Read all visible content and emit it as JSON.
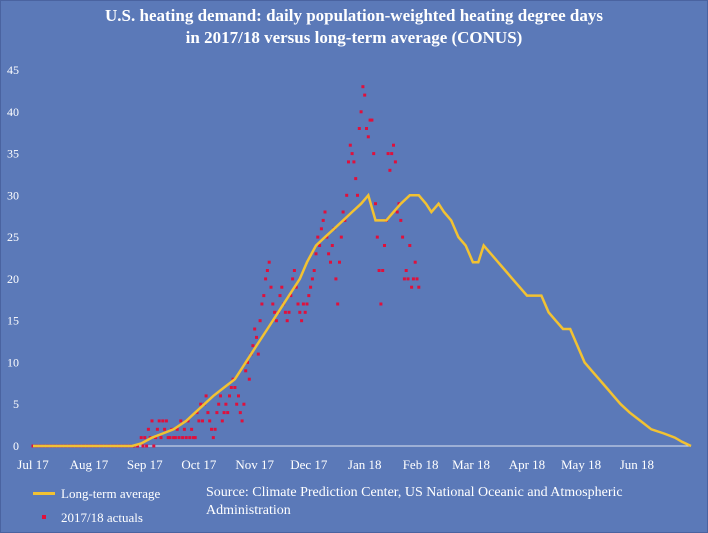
{
  "chart_data": {
    "type": "line",
    "title_lines": [
      "U.S. heating demand: daily population-weighted heating degree days",
      "in 2017/18 versus long-term average (CONUS)"
    ],
    "ylim": [
      0,
      45
    ],
    "yticks": [
      0,
      5,
      10,
      15,
      20,
      25,
      30,
      35,
      40,
      45
    ],
    "x_unit": "days since Jul 1, 2017",
    "xlim": [
      0,
      365
    ],
    "xticks": [
      {
        "label": "Jul 17",
        "day": 0
      },
      {
        "label": "Aug 17",
        "day": 31
      },
      {
        "label": "Sep 17",
        "day": 62
      },
      {
        "label": "Oct 17",
        "day": 92
      },
      {
        "label": "Nov 17",
        "day": 123
      },
      {
        "label": "Dec 17",
        "day": 153
      },
      {
        "label": "Jan 18",
        "day": 184
      },
      {
        "label": "Feb 18",
        "day": 215
      },
      {
        "label": "Mar 18",
        "day": 243
      },
      {
        "label": "Apr 18",
        "day": 274
      },
      {
        "label": "May 18",
        "day": 304
      },
      {
        "label": "Jun 18",
        "day": 335
      }
    ],
    "grid": false,
    "legend_position": "bottom-left",
    "series": [
      {
        "name": "Long-term average",
        "style": "line",
        "color": "#f2c232",
        "points": [
          [
            0,
            0
          ],
          [
            55,
            0
          ],
          [
            60,
            0.3
          ],
          [
            66,
            1
          ],
          [
            72,
            1.5
          ],
          [
            78,
            2
          ],
          [
            85,
            3
          ],
          [
            90,
            4
          ],
          [
            95,
            5
          ],
          [
            100,
            6
          ],
          [
            106,
            7
          ],
          [
            112,
            8
          ],
          [
            118,
            10
          ],
          [
            124,
            12
          ],
          [
            130,
            14
          ],
          [
            136,
            16
          ],
          [
            142,
            18
          ],
          [
            148,
            20
          ],
          [
            152,
            22
          ],
          [
            157,
            24
          ],
          [
            162,
            25
          ],
          [
            167,
            26
          ],
          [
            172,
            27
          ],
          [
            177,
            28
          ],
          [
            182,
            29
          ],
          [
            186,
            30
          ],
          [
            190,
            27
          ],
          [
            196,
            27
          ],
          [
            200,
            28
          ],
          [
            204,
            29
          ],
          [
            209,
            30
          ],
          [
            214,
            30
          ],
          [
            218,
            29
          ],
          [
            221,
            28
          ],
          [
            225,
            29
          ],
          [
            228,
            28
          ],
          [
            232,
            27
          ],
          [
            236,
            25
          ],
          [
            240,
            24
          ],
          [
            244,
            22
          ],
          [
            247,
            22
          ],
          [
            250,
            24
          ],
          [
            254,
            23
          ],
          [
            258,
            22
          ],
          [
            262,
            21
          ],
          [
            266,
            20
          ],
          [
            270,
            19
          ],
          [
            274,
            18
          ],
          [
            282,
            18
          ],
          [
            286,
            16
          ],
          [
            290,
            15
          ],
          [
            294,
            14
          ],
          [
            298,
            14
          ],
          [
            302,
            12
          ],
          [
            306,
            10
          ],
          [
            310,
            9
          ],
          [
            314,
            8
          ],
          [
            318,
            7
          ],
          [
            322,
            6
          ],
          [
            326,
            5
          ],
          [
            331,
            4
          ],
          [
            337,
            3
          ],
          [
            343,
            2
          ],
          [
            350,
            1.5
          ],
          [
            356,
            1
          ],
          [
            360,
            0.5
          ],
          [
            365,
            0
          ]
        ]
      },
      {
        "name": "2017/18 actuals",
        "style": "scatter",
        "color": "#e0103c",
        "points": [
          [
            0,
            0
          ],
          [
            2,
            0
          ],
          [
            4,
            0
          ],
          [
            6,
            0
          ],
          [
            8,
            0
          ],
          [
            10,
            0
          ],
          [
            12,
            0
          ],
          [
            14,
            0
          ],
          [
            16,
            0
          ],
          [
            18,
            0
          ],
          [
            20,
            0
          ],
          [
            22,
            0
          ],
          [
            24,
            0
          ],
          [
            26,
            0
          ],
          [
            28,
            0
          ],
          [
            30,
            0
          ],
          [
            32,
            0
          ],
          [
            34,
            0
          ],
          [
            36,
            0
          ],
          [
            38,
            0
          ],
          [
            40,
            0
          ],
          [
            42,
            0
          ],
          [
            44,
            0
          ],
          [
            46,
            0
          ],
          [
            48,
            0
          ],
          [
            50,
            0
          ],
          [
            52,
            0
          ],
          [
            54,
            0
          ],
          [
            56,
            0
          ],
          [
            58,
            0
          ],
          [
            60,
            1
          ],
          [
            61,
            0
          ],
          [
            62,
            1
          ],
          [
            63,
            0
          ],
          [
            64,
            2
          ],
          [
            65,
            1
          ],
          [
            66,
            3
          ],
          [
            67,
            0
          ],
          [
            68,
            1
          ],
          [
            69,
            2
          ],
          [
            70,
            3
          ],
          [
            71,
            1
          ],
          [
            72,
            3
          ],
          [
            73,
            2
          ],
          [
            74,
            3
          ],
          [
            75,
            1
          ],
          [
            76,
            1
          ],
          [
            77,
            2
          ],
          [
            78,
            1
          ],
          [
            79,
            1
          ],
          [
            80,
            2
          ],
          [
            81,
            1
          ],
          [
            82,
            3
          ],
          [
            83,
            1
          ],
          [
            84,
            2
          ],
          [
            85,
            1
          ],
          [
            86,
            3
          ],
          [
            87,
            1
          ],
          [
            88,
            2
          ],
          [
            89,
            1
          ],
          [
            90,
            1
          ],
          [
            91,
            4
          ],
          [
            92,
            3
          ],
          [
            93,
            5
          ],
          [
            94,
            3
          ],
          [
            95,
            5
          ],
          [
            96,
            6
          ],
          [
            97,
            4
          ],
          [
            98,
            3
          ],
          [
            99,
            2
          ],
          [
            100,
            1
          ],
          [
            101,
            2
          ],
          [
            102,
            4
          ],
          [
            103,
            5
          ],
          [
            104,
            6
          ],
          [
            105,
            3
          ],
          [
            106,
            4
          ],
          [
            107,
            5
          ],
          [
            108,
            4
          ],
          [
            109,
            6
          ],
          [
            110,
            7
          ],
          [
            111,
            8
          ],
          [
            112,
            7
          ],
          [
            113,
            5
          ],
          [
            114,
            6
          ],
          [
            115,
            4
          ],
          [
            116,
            3
          ],
          [
            117,
            5
          ],
          [
            118,
            9
          ],
          [
            119,
            10
          ],
          [
            120,
            8
          ],
          [
            121,
            11
          ],
          [
            122,
            12
          ],
          [
            123,
            14
          ],
          [
            124,
            13
          ],
          [
            125,
            11
          ],
          [
            126,
            15
          ],
          [
            127,
            17
          ],
          [
            128,
            18
          ],
          [
            129,
            20
          ],
          [
            130,
            21
          ],
          [
            131,
            22
          ],
          [
            132,
            19
          ],
          [
            133,
            17
          ],
          [
            134,
            16
          ],
          [
            135,
            15
          ],
          [
            136,
            16
          ],
          [
            137,
            18
          ],
          [
            138,
            19
          ],
          [
            139,
            17
          ],
          [
            140,
            16
          ],
          [
            141,
            15
          ],
          [
            142,
            16
          ],
          [
            143,
            18
          ],
          [
            144,
            20
          ],
          [
            145,
            21
          ],
          [
            146,
            19
          ],
          [
            147,
            17
          ],
          [
            148,
            16
          ],
          [
            149,
            15
          ],
          [
            150,
            17
          ],
          [
            151,
            16
          ],
          [
            152,
            17
          ],
          [
            153,
            18
          ],
          [
            154,
            19
          ],
          [
            155,
            20
          ],
          [
            156,
            21
          ],
          [
            157,
            23
          ],
          [
            158,
            25
          ],
          [
            159,
            24
          ],
          [
            160,
            26
          ],
          [
            161,
            27
          ],
          [
            162,
            28
          ],
          [
            163,
            25
          ],
          [
            164,
            23
          ],
          [
            165,
            22
          ],
          [
            166,
            24
          ],
          [
            167,
            26
          ],
          [
            168,
            20
          ],
          [
            169,
            17
          ],
          [
            170,
            22
          ],
          [
            171,
            25
          ],
          [
            172,
            28
          ],
          [
            173,
            27
          ],
          [
            174,
            30
          ],
          [
            175,
            34
          ],
          [
            176,
            36
          ],
          [
            177,
            35
          ],
          [
            178,
            34
          ],
          [
            179,
            32
          ],
          [
            180,
            30
          ],
          [
            181,
            38
          ],
          [
            182,
            40
          ],
          [
            183,
            43
          ],
          [
            184,
            42
          ],
          [
            185,
            38
          ],
          [
            186,
            37
          ],
          [
            187,
            39
          ],
          [
            188,
            39
          ],
          [
            189,
            35
          ],
          [
            190,
            29
          ],
          [
            191,
            25
          ],
          [
            192,
            21
          ],
          [
            193,
            17
          ],
          [
            194,
            21
          ],
          [
            195,
            24
          ],
          [
            196,
            27
          ],
          [
            197,
            35
          ],
          [
            198,
            33
          ],
          [
            199,
            35
          ],
          [
            200,
            36
          ],
          [
            201,
            34
          ],
          [
            202,
            28
          ],
          [
            203,
            29
          ],
          [
            204,
            27
          ],
          [
            205,
            25
          ],
          [
            206,
            20
          ],
          [
            207,
            21
          ],
          [
            208,
            20
          ],
          [
            209,
            24
          ],
          [
            210,
            19
          ],
          [
            211,
            20
          ],
          [
            212,
            22
          ],
          [
            213,
            20
          ],
          [
            214,
            19
          ]
        ]
      }
    ],
    "source": "Source: Climate Prediction Center, US National Oceanic and Atmospheric Administration"
  }
}
